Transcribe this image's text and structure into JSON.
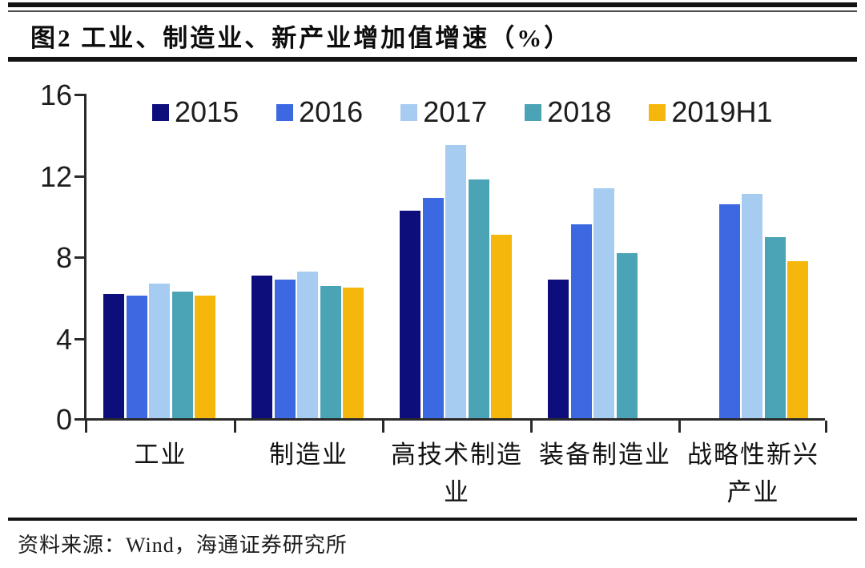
{
  "header": {
    "title": "图2  工业、制造业、新产业增加值增速（%）"
  },
  "chart_data": {
    "type": "bar",
    "title": "工业、制造业、新产业增加值增速（%）",
    "categories": [
      "工业",
      "制造业",
      "高技术制造业",
      "装备制造业",
      "战略性新兴产业"
    ],
    "category_display": [
      [
        "工业",
        ""
      ],
      [
        "制造业",
        ""
      ],
      [
        "高技术制造",
        "业"
      ],
      [
        "装备制造业",
        ""
      ],
      [
        "战略性新兴",
        "产业"
      ]
    ],
    "series": [
      {
        "name": "2015",
        "color": "#0D0D7C",
        "values": [
          6.1,
          7.0,
          10.2,
          6.8,
          null
        ]
      },
      {
        "name": "2016",
        "color": "#3C69E2",
        "values": [
          6.0,
          6.8,
          10.8,
          9.5,
          10.5
        ]
      },
      {
        "name": "2017",
        "color": "#A7CCF1",
        "values": [
          6.6,
          7.2,
          13.4,
          11.3,
          11.0
        ]
      },
      {
        "name": "2018",
        "color": "#4BA4B5",
        "values": [
          6.2,
          6.5,
          11.7,
          8.1,
          8.9
        ]
      },
      {
        "name": "2019H1",
        "color": "#F6B70C",
        "values": [
          6.0,
          6.4,
          9.0,
          null,
          7.7
        ]
      }
    ],
    "ylim": [
      0,
      16
    ],
    "yticks": [
      0,
      4,
      8,
      12,
      16
    ],
    "legend_position": "top-inside",
    "grid": false,
    "ylabel": "",
    "xlabel": ""
  },
  "footer": {
    "source": "资料来源：Wind，海通证券研究所"
  }
}
